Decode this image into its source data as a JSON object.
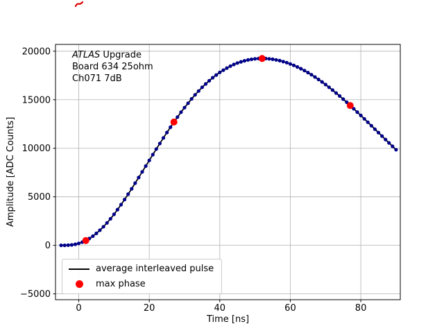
{
  "chart_data": {
    "type": "line",
    "title": "",
    "xlabel": "Time [ns]",
    "ylabel": "Amplitude [ADC Counts]",
    "xlim": [
      -6.6,
      91.2
    ],
    "ylim": [
      -5600,
      20700
    ],
    "xticks": [
      0,
      20,
      40,
      60,
      80
    ],
    "yticks": [
      -5000,
      0,
      5000,
      10000,
      15000,
      20000
    ],
    "grid": true,
    "grid_color": "#b0b0b0",
    "annotation": {
      "title_italic": "ATLAS",
      "title_rest": " Upgrade",
      "line2": "Board 634 25ohm",
      "line3": "Ch071 7dB"
    },
    "legend": {
      "position": "lower left",
      "entries": [
        {
          "label": "average interleaved pulse",
          "marker": "line",
          "color": "#000000"
        },
        {
          "label": "max phase",
          "marker": "dot",
          "color": "#ff0000"
        }
      ]
    },
    "series": [
      {
        "name": "average interleaved pulse",
        "type": "line+markers",
        "line_color": "#000000",
        "marker_color": "#00008b",
        "x_start": -5,
        "x_step": 1,
        "y": [
          0,
          2,
          15,
          48,
          108,
          201,
          329,
          495,
          702,
          948,
          1234,
          1558,
          1918,
          2313,
          2742,
          3200,
          3684,
          4192,
          4723,
          5268,
          5828,
          6405,
          6985,
          7570,
          8162,
          8750,
          9342,
          9923,
          10497,
          11068,
          11624,
          12164,
          12702,
          13209,
          13715,
          14190,
          14640,
          15092,
          15506,
          15895,
          16280,
          16627,
          16952,
          17271,
          17549,
          17820,
          18052,
          18260,
          18460,
          18633,
          18783,
          18909,
          19015,
          19100,
          19164,
          19213,
          19241,
          19250,
          19241,
          19214,
          19170,
          19108,
          19028,
          18931,
          18817,
          18687,
          18540,
          18377,
          18199,
          18005,
          17798,
          17576,
          17341,
          17093,
          16833,
          16562,
          16281,
          15989,
          15689,
          15380,
          15064,
          14742,
          14404,
          14067,
          13725,
          13379,
          13030,
          12678,
          12324,
          11969,
          11613,
          11258,
          10903,
          10550,
          10199,
          9850
        ]
      },
      {
        "name": "max phase",
        "type": "markers",
        "marker_color": "#ff0000",
        "x": [
          2,
          27,
          52,
          77
        ],
        "y": [
          495,
          12702,
          19250,
          14404
        ]
      }
    ]
  }
}
